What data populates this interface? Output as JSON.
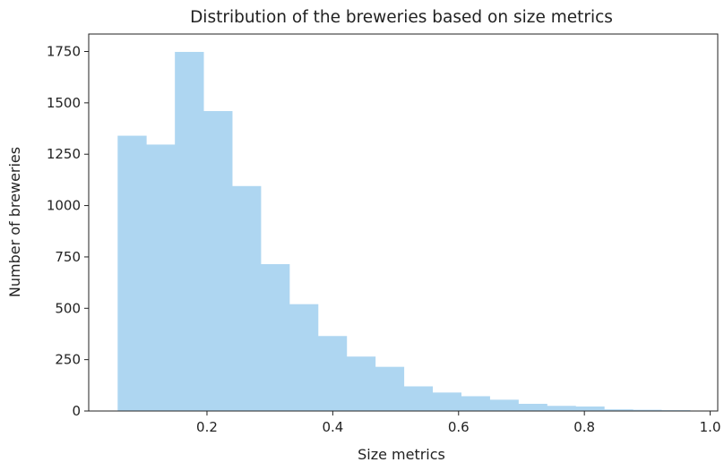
{
  "chart_data": {
    "type": "bar",
    "title": "Distribution of the breweries based on size metrics",
    "xlabel": "Size metrics",
    "ylabel": "Number of breweries",
    "bin_edges": [
      0.058,
      0.1035,
      0.149,
      0.1945,
      0.24,
      0.2855,
      0.331,
      0.3765,
      0.422,
      0.4675,
      0.513,
      0.5585,
      0.604,
      0.6495,
      0.695,
      0.7405,
      0.786,
      0.8315,
      0.877,
      0.9225,
      0.968
    ],
    "values": [
      1340,
      1297,
      1748,
      1460,
      1095,
      715,
      520,
      365,
      265,
      215,
      120,
      90,
      72,
      55,
      35,
      25,
      22,
      8,
      6,
      4
    ],
    "xlim": [
      0.012,
      1.012
    ],
    "ylim": [
      0,
      1835
    ],
    "xticks": [
      0.2,
      0.4,
      0.6,
      0.8,
      1.0
    ],
    "xtick_labels": [
      "0.2",
      "0.4",
      "0.6",
      "0.8",
      "1.0"
    ],
    "yticks": [
      0,
      250,
      500,
      750,
      1000,
      1250,
      1500,
      1750
    ],
    "ytick_labels": [
      "0",
      "250",
      "500",
      "750",
      "1000",
      "1250",
      "1500",
      "1750"
    ],
    "bar_color": "#aed6f1",
    "grid": false,
    "legend": "none"
  }
}
